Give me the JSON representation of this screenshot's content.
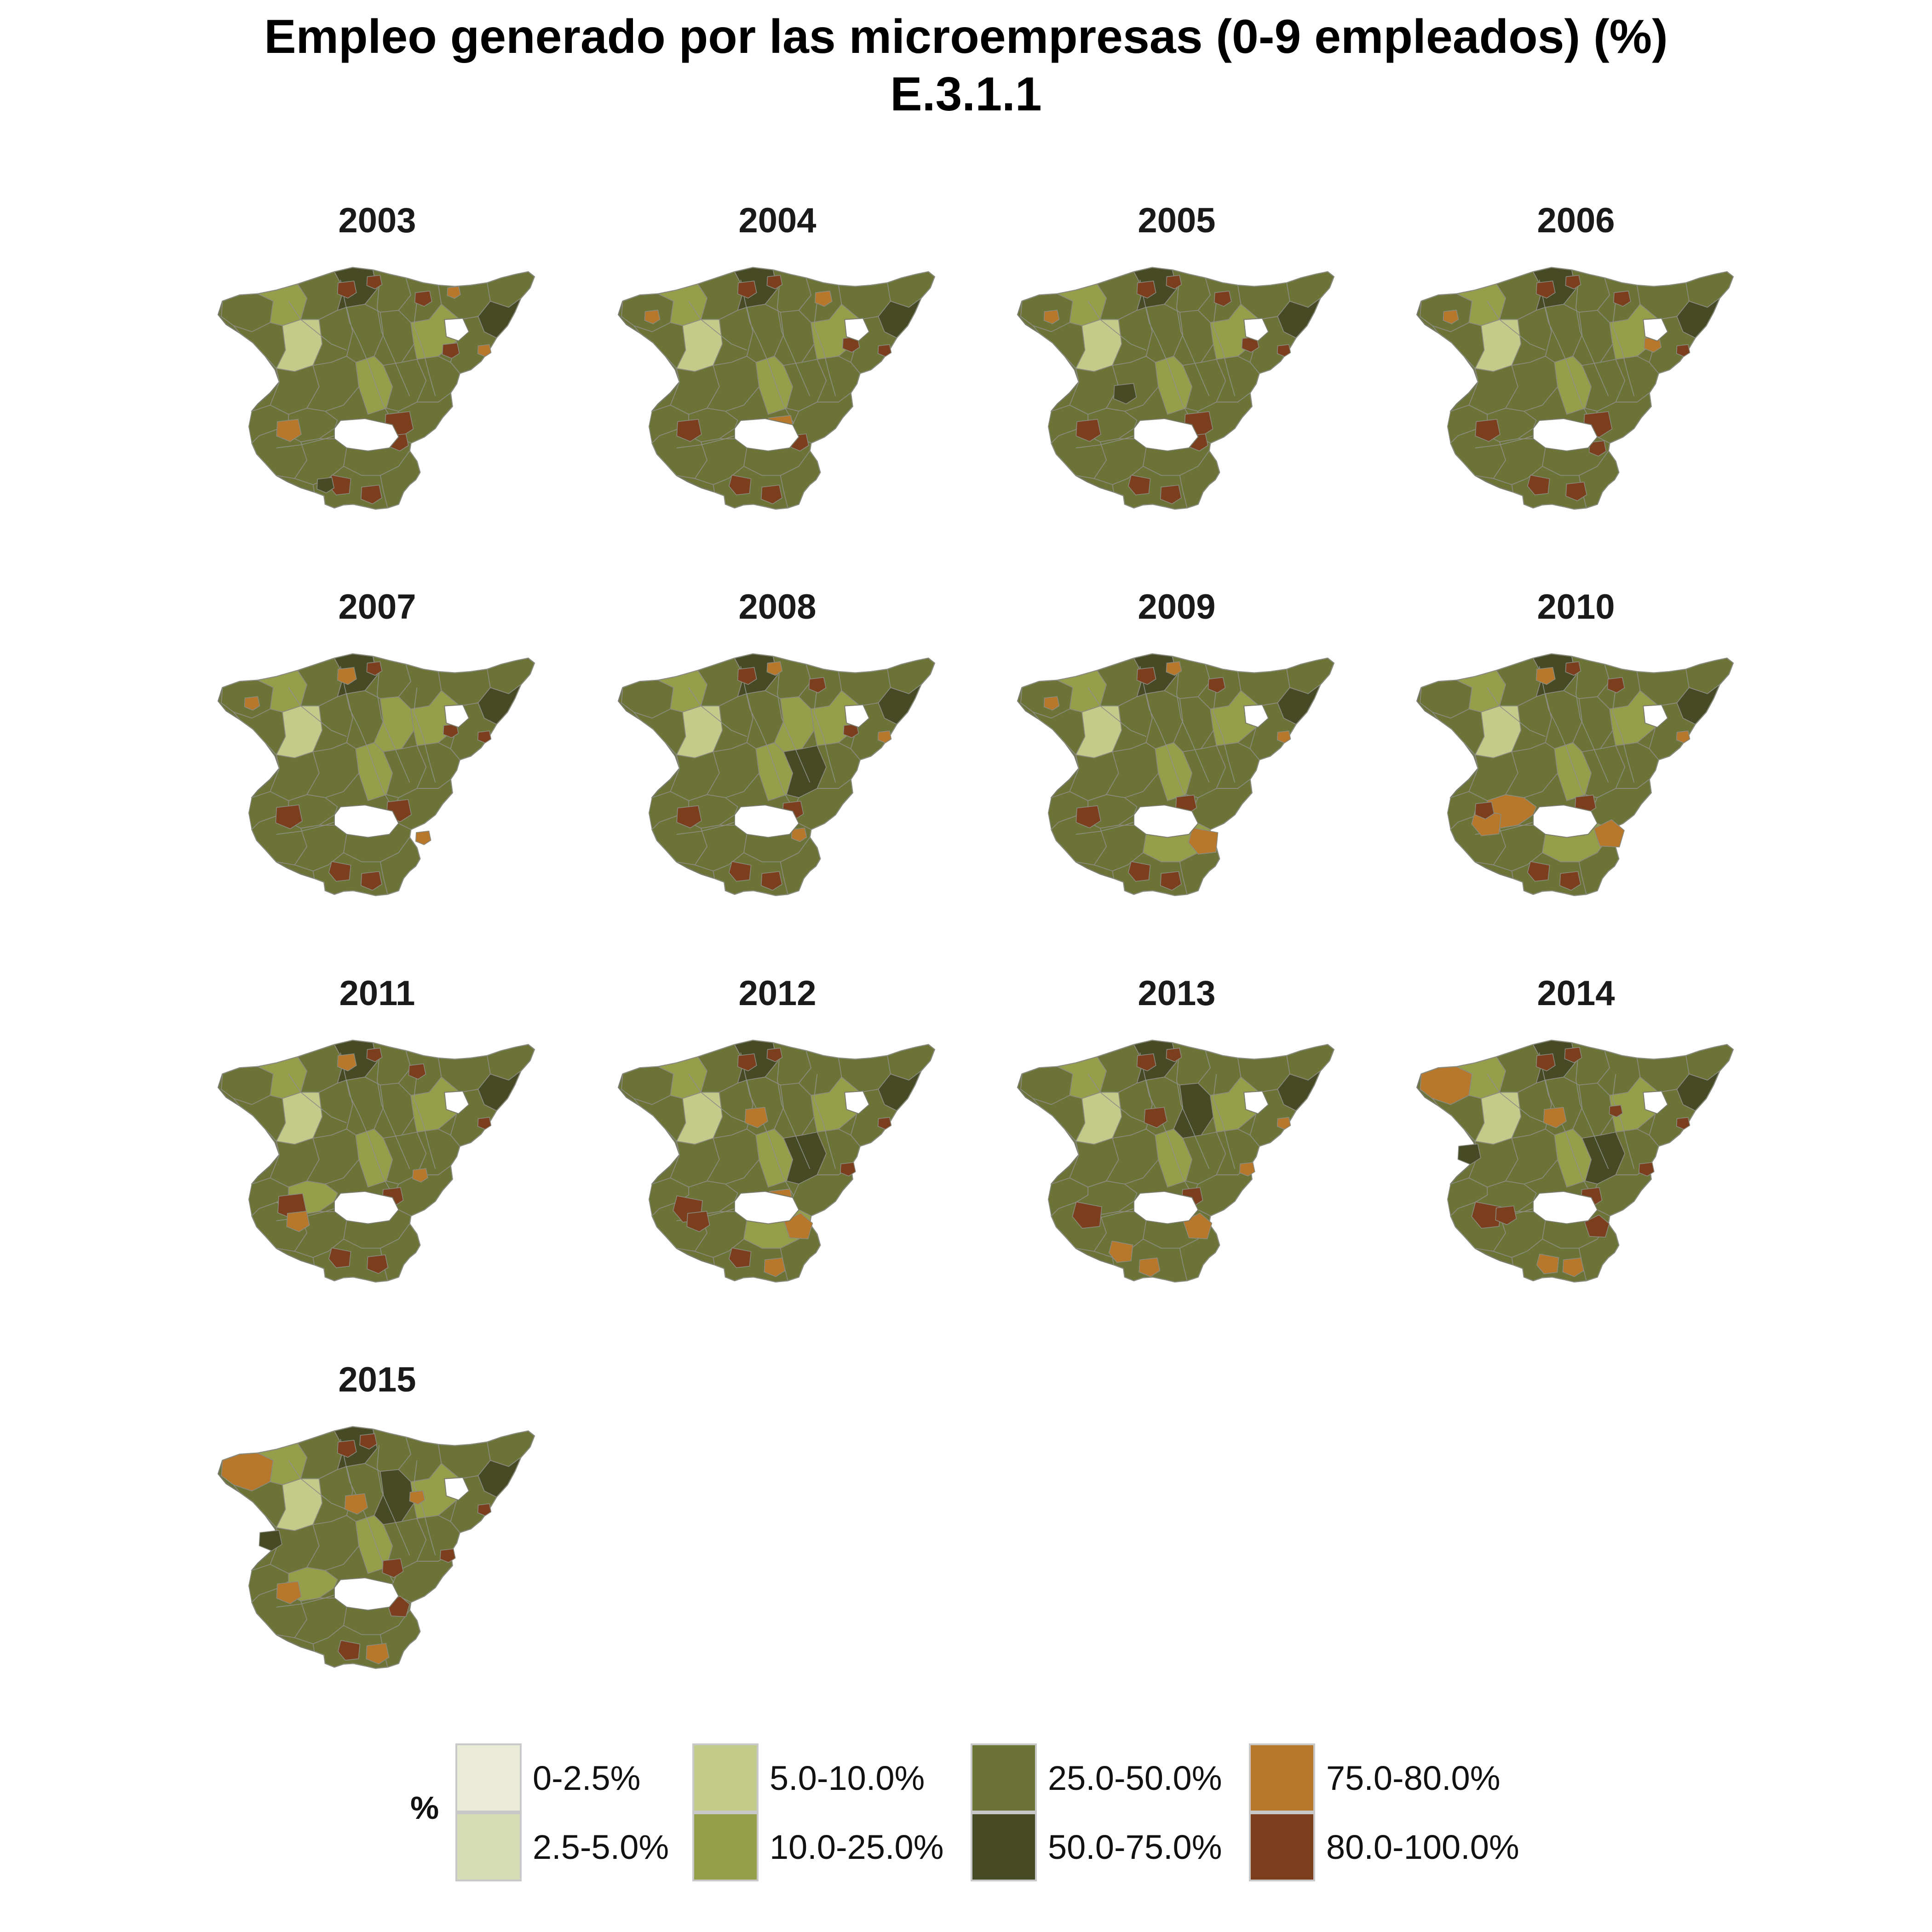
{
  "title": "Empleo generado por las microempresas (0-9 empleados) (%)",
  "subtitle": "E.3.1.1",
  "legend": {
    "title": "%",
    "categories": [
      {
        "label": "0-2.5%",
        "color": "#e9ebd8"
      },
      {
        "label": "2.5-5.0%",
        "color": "#d6dcb5"
      },
      {
        "label": "5.0-10.0%",
        "color": "#c2cb8a"
      },
      {
        "label": "10.0-25.0%",
        "color": "#959f4a"
      },
      {
        "label": "25.0-50.0%",
        "color": "#6b7436"
      },
      {
        "label": "50.0-75.0%",
        "color": "#464b26"
      },
      {
        "label": "75.0-80.0%",
        "color": "#b8782c"
      },
      {
        "label": "80.0-100.0%",
        "color": "#7b3f1e"
      }
    ]
  },
  "panels": [
    {
      "year": "2003"
    },
    {
      "year": "2004"
    },
    {
      "year": "2005"
    },
    {
      "year": "2006"
    },
    {
      "year": "2007"
    },
    {
      "year": "2008"
    },
    {
      "year": "2009"
    },
    {
      "year": "2010"
    },
    {
      "year": "2011"
    },
    {
      "year": "2012"
    },
    {
      "year": "2013"
    },
    {
      "year": "2014"
    },
    {
      "year": "2015"
    }
  ]
}
